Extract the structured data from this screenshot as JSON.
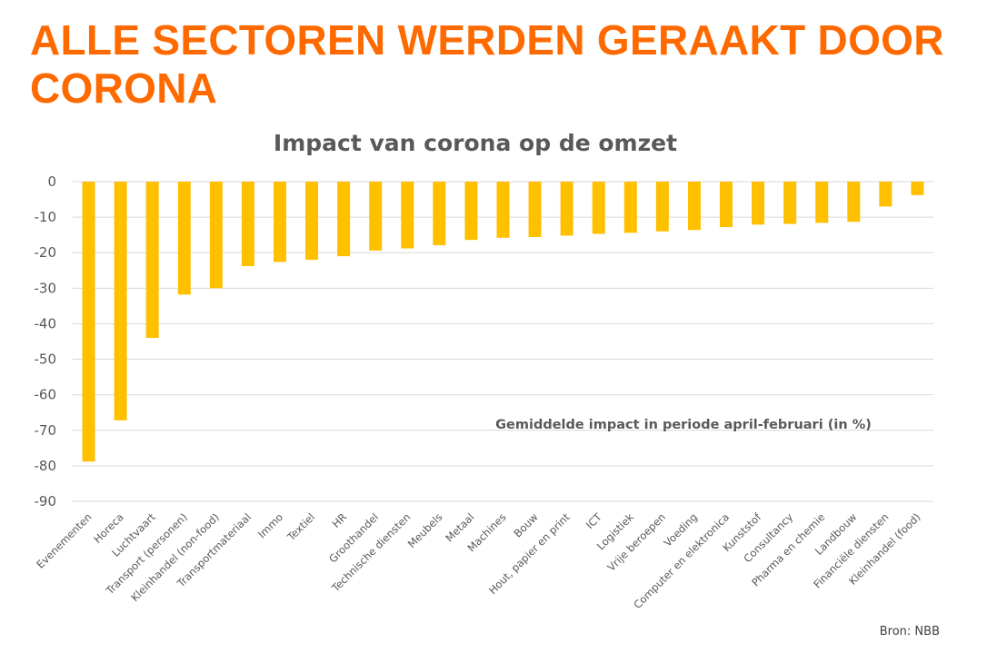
{
  "slide": {
    "title": "ALLE SECTOREN WERDEN GERAAKT DOOR CORONA",
    "source": "Bron: NBB"
  },
  "colors": {
    "title": "#ff6a00",
    "bar": "#ffc000",
    "grid": "#d9d9d9",
    "text": "#595959"
  },
  "chart_data": {
    "type": "bar",
    "title": "Impact van corona op de omzet",
    "annotation": "Gemiddelde impact in periode april-februari (in %)",
    "xlabel": "",
    "ylabel": "",
    "ylim": [
      -90,
      0
    ],
    "yticks": [
      0,
      -10,
      -20,
      -30,
      -40,
      -50,
      -60,
      -70,
      -80,
      -90
    ],
    "grid": true,
    "legend": "none",
    "categories": [
      "Evenementen",
      "Horeca",
      "Luchtvaart",
      "Transport (personen)",
      "Kleinhandel (non-food)",
      "Transportmateriaal",
      "Immo",
      "Textiel",
      "HR",
      "Groothandel",
      "Technische diensten",
      "Meubels",
      "Metaal",
      "Machines",
      "Bouw",
      "Hout, papier en print",
      "ICT",
      "Logistiek",
      "Vrije beroepen",
      "Voeding",
      "Computer en elektronica",
      "Kunststof",
      "Consultancy",
      "Pharma en chemie",
      "Landbouw",
      "Financiële diensten",
      "Kleinhandel (food)"
    ],
    "values": [
      -78.8,
      -67.2,
      -44.0,
      -31.8,
      -30.0,
      -23.8,
      -22.6,
      -22.0,
      -21.0,
      -19.4,
      -18.8,
      -17.9,
      -16.4,
      -15.8,
      -15.6,
      -15.2,
      -14.7,
      -14.4,
      -14.0,
      -13.6,
      -12.8,
      -12.1,
      -11.9,
      -11.6,
      -11.3,
      -7.0,
      -3.8
    ]
  }
}
